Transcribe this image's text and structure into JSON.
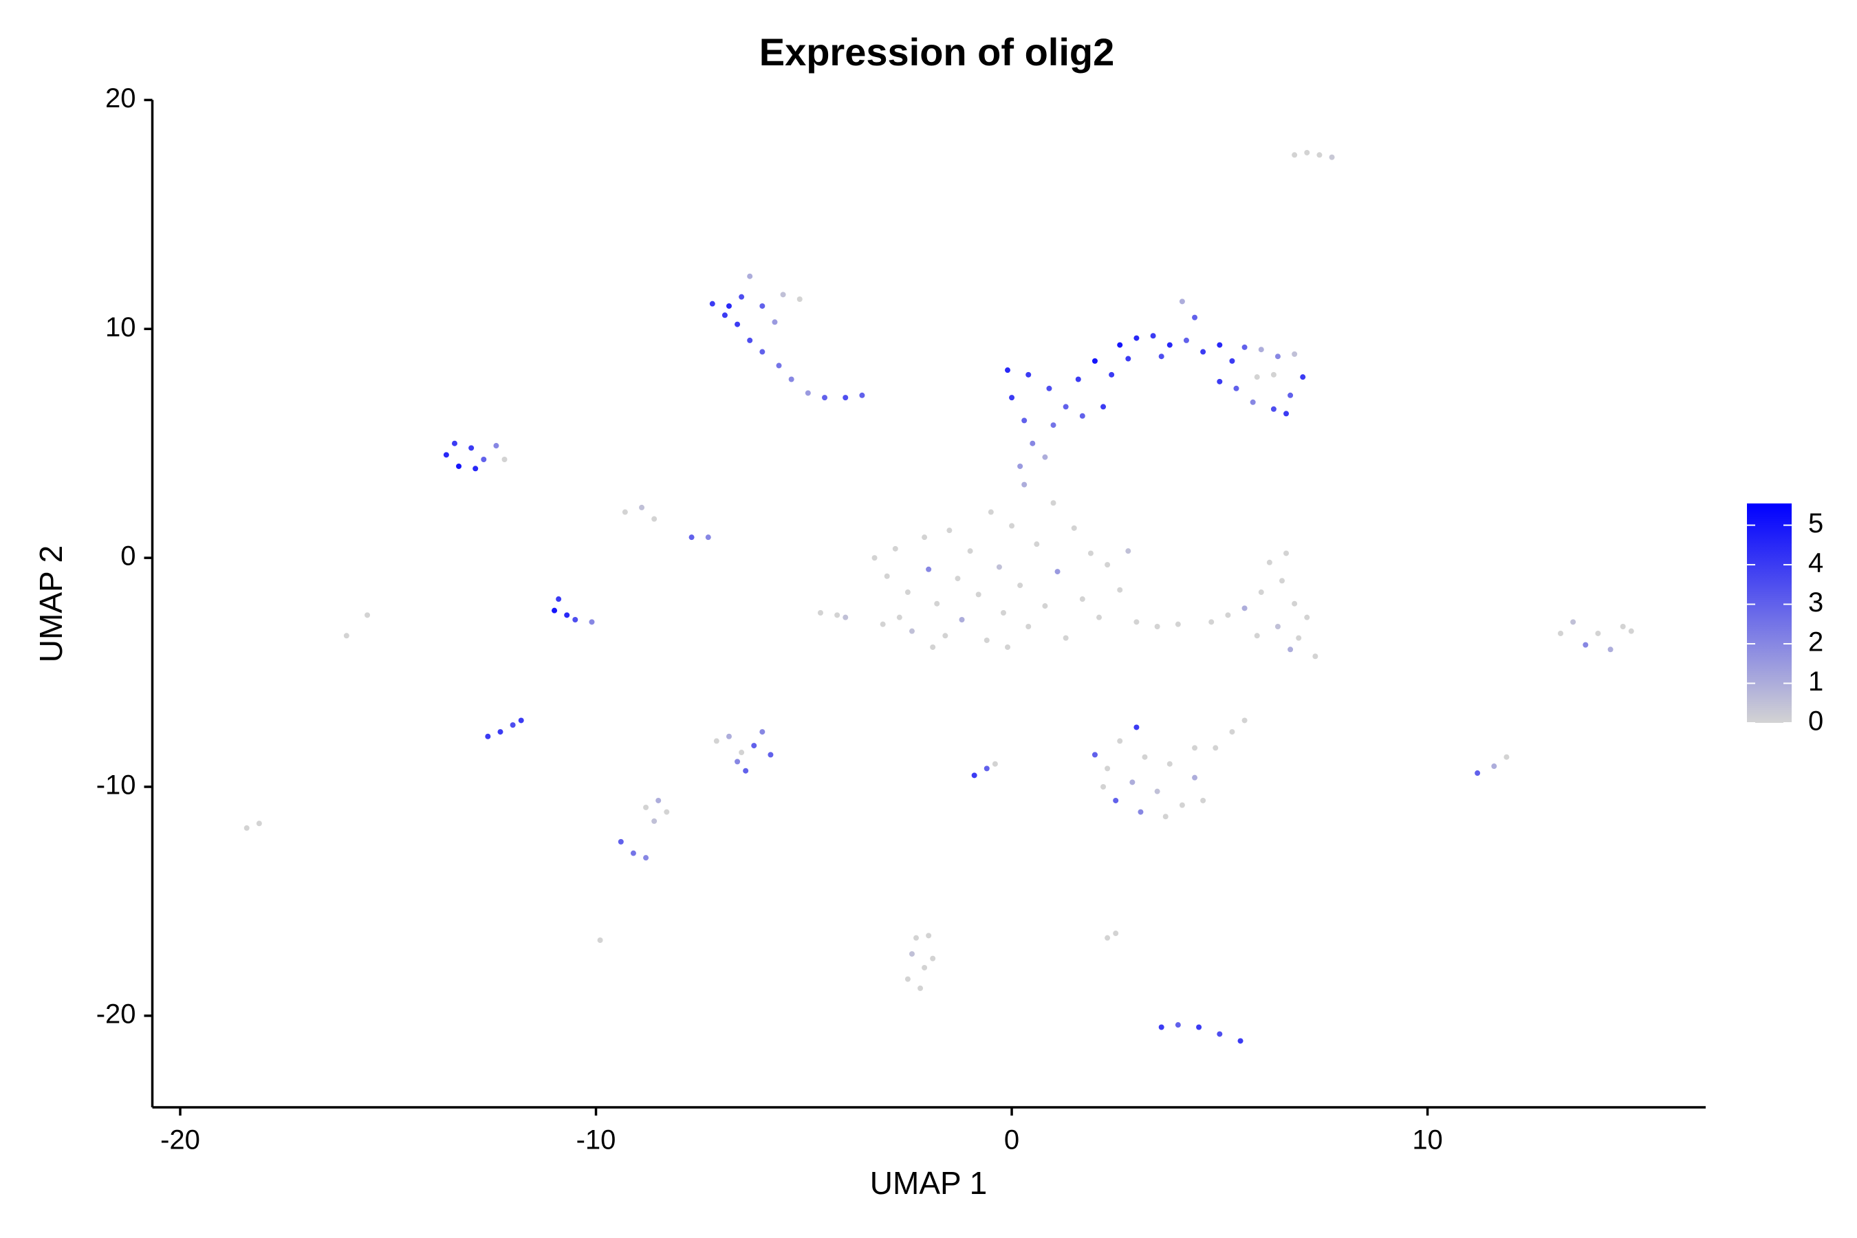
{
  "chart_data": {
    "type": "scatter",
    "title": "Expression of olig2",
    "x_label": "UMAP 1",
    "y_label": "UMAP 2",
    "xlim": [
      -20.67,
      16.69
    ],
    "ylim": [
      -24,
      20
    ],
    "xticks": [
      -20,
      -10,
      0,
      10
    ],
    "yticks": [
      -20,
      -10,
      0,
      10,
      20
    ],
    "colors": [
      "#d3d3d3",
      "#0000ff"
    ],
    "colorlim": [
      0,
      5.55
    ],
    "colorbar_ticks": [
      0,
      1,
      2,
      3,
      4,
      5
    ],
    "points": [
      {
        "x": 6.8,
        "y": 17.6,
        "expression": 0
      },
      {
        "x": 7.1,
        "y": 17.7,
        "expression": 0
      },
      {
        "x": 7.4,
        "y": 17.6,
        "expression": 0
      },
      {
        "x": 7.7,
        "y": 17.5,
        "expression": 0.3
      },
      {
        "x": -7.2,
        "y": 11.1,
        "expression": 4
      },
      {
        "x": -6.8,
        "y": 11.0,
        "expression": 4.5
      },
      {
        "x": -6.5,
        "y": 11.4,
        "expression": 3.5
      },
      {
        "x": -6.3,
        "y": 12.3,
        "expression": 1
      },
      {
        "x": -6.0,
        "y": 11.0,
        "expression": 3
      },
      {
        "x": -5.5,
        "y": 11.5,
        "expression": 0.5
      },
      {
        "x": -5.1,
        "y": 11.3,
        "expression": 0
      },
      {
        "x": -6.6,
        "y": 10.2,
        "expression": 4
      },
      {
        "x": -6.3,
        "y": 9.5,
        "expression": 3.5
      },
      {
        "x": -6.0,
        "y": 9.0,
        "expression": 3
      },
      {
        "x": -5.6,
        "y": 8.4,
        "expression": 2.5
      },
      {
        "x": -5.3,
        "y": 7.8,
        "expression": 2
      },
      {
        "x": -4.9,
        "y": 7.2,
        "expression": 1.5
      },
      {
        "x": -4.5,
        "y": 7.0,
        "expression": 3
      },
      {
        "x": -4.0,
        "y": 7.0,
        "expression": 3.5
      },
      {
        "x": -3.6,
        "y": 7.1,
        "expression": 3
      },
      {
        "x": -5.7,
        "y": 10.3,
        "expression": 1.5
      },
      {
        "x": -6.9,
        "y": 10.6,
        "expression": 4
      },
      {
        "x": -13.6,
        "y": 4.5,
        "expression": 4.5
      },
      {
        "x": -13.3,
        "y": 4.0,
        "expression": 5
      },
      {
        "x": -13.0,
        "y": 4.8,
        "expression": 4
      },
      {
        "x": -12.7,
        "y": 4.3,
        "expression": 3
      },
      {
        "x": -12.4,
        "y": 4.9,
        "expression": 2
      },
      {
        "x": -12.2,
        "y": 4.3,
        "expression": 0
      },
      {
        "x": -13.4,
        "y": 5.0,
        "expression": 4
      },
      {
        "x": -12.9,
        "y": 3.9,
        "expression": 4.5
      },
      {
        "x": -9.3,
        "y": 2.0,
        "expression": 0
      },
      {
        "x": -8.9,
        "y": 2.2,
        "expression": 0.5
      },
      {
        "x": -8.6,
        "y": 1.7,
        "expression": 0
      },
      {
        "x": -7.7,
        "y": 0.9,
        "expression": 3
      },
      {
        "x": -7.3,
        "y": 0.9,
        "expression": 2
      },
      {
        "x": -11.0,
        "y": -2.3,
        "expression": 5
      },
      {
        "x": -10.7,
        "y": -2.5,
        "expression": 4.5
      },
      {
        "x": -10.9,
        "y": -1.8,
        "expression": 4
      },
      {
        "x": -10.5,
        "y": -2.7,
        "expression": 3.5
      },
      {
        "x": -10.1,
        "y": -2.8,
        "expression": 2
      },
      {
        "x": -15.5,
        "y": -2.5,
        "expression": 0
      },
      {
        "x": -16.0,
        "y": -3.4,
        "expression": 0
      },
      {
        "x": -12.6,
        "y": -7.8,
        "expression": 4
      },
      {
        "x": -12.3,
        "y": -7.6,
        "expression": 4
      },
      {
        "x": -12.0,
        "y": -7.3,
        "expression": 3.5
      },
      {
        "x": -11.8,
        "y": -7.1,
        "expression": 4
      },
      {
        "x": -18.4,
        "y": -11.8,
        "expression": 0
      },
      {
        "x": -18.1,
        "y": -11.6,
        "expression": 0
      },
      {
        "x": -4.6,
        "y": -2.4,
        "expression": 0
      },
      {
        "x": -4.2,
        "y": -2.5,
        "expression": 0
      },
      {
        "x": -4.0,
        "y": -2.6,
        "expression": 0.5
      },
      {
        "x": -7.1,
        "y": -8.0,
        "expression": 0
      },
      {
        "x": -6.8,
        "y": -7.8,
        "expression": 1
      },
      {
        "x": -6.5,
        "y": -8.5,
        "expression": 0
      },
      {
        "x": -6.2,
        "y": -8.2,
        "expression": 3
      },
      {
        "x": -6.0,
        "y": -7.6,
        "expression": 2
      },
      {
        "x": -5.8,
        "y": -8.6,
        "expression": 3
      },
      {
        "x": -6.4,
        "y": -9.3,
        "expression": 3
      },
      {
        "x": -6.6,
        "y": -8.9,
        "expression": 2
      },
      {
        "x": -8.8,
        "y": -10.9,
        "expression": 0
      },
      {
        "x": -8.5,
        "y": -10.6,
        "expression": 1
      },
      {
        "x": -8.6,
        "y": -11.5,
        "expression": 0.5
      },
      {
        "x": -8.3,
        "y": -11.1,
        "expression": 0
      },
      {
        "x": -9.4,
        "y": -12.4,
        "expression": 3
      },
      {
        "x": -9.1,
        "y": -12.9,
        "expression": 2.5
      },
      {
        "x": -8.8,
        "y": -13.1,
        "expression": 2
      },
      {
        "x": -9.9,
        "y": -16.7,
        "expression": 0
      },
      {
        "x": -2.3,
        "y": -16.6,
        "expression": 0
      },
      {
        "x": -2.0,
        "y": -16.5,
        "expression": 0
      },
      {
        "x": -2.4,
        "y": -17.3,
        "expression": 0.5
      },
      {
        "x": -2.1,
        "y": -17.9,
        "expression": 0
      },
      {
        "x": -2.5,
        "y": -18.4,
        "expression": 0
      },
      {
        "x": -2.2,
        "y": -18.8,
        "expression": 0
      },
      {
        "x": -1.9,
        "y": -17.5,
        "expression": 0
      },
      {
        "x": -0.9,
        "y": -9.5,
        "expression": 4
      },
      {
        "x": -0.6,
        "y": -9.2,
        "expression": 3
      },
      {
        "x": -0.4,
        "y": -9.0,
        "expression": 0
      },
      {
        "x": 2.3,
        "y": -16.6,
        "expression": 0
      },
      {
        "x": 2.5,
        "y": -16.4,
        "expression": 0
      },
      {
        "x": 3.6,
        "y": -20.5,
        "expression": 4
      },
      {
        "x": 4.0,
        "y": -20.4,
        "expression": 3
      },
      {
        "x": 4.5,
        "y": -20.5,
        "expression": 4
      },
      {
        "x": 5.0,
        "y": -20.8,
        "expression": 3.5
      },
      {
        "x": 5.5,
        "y": -21.1,
        "expression": 4
      },
      {
        "x": 2.0,
        "y": -8.6,
        "expression": 3
      },
      {
        "x": 2.3,
        "y": -9.2,
        "expression": 0
      },
      {
        "x": 2.6,
        "y": -8.0,
        "expression": 0
      },
      {
        "x": 2.9,
        "y": -9.8,
        "expression": 1
      },
      {
        "x": 3.2,
        "y": -8.7,
        "expression": 0
      },
      {
        "x": 3.5,
        "y": -10.2,
        "expression": 0.5
      },
      {
        "x": 3.8,
        "y": -9.0,
        "expression": 0
      },
      {
        "x": 4.1,
        "y": -10.8,
        "expression": 0
      },
      {
        "x": 4.4,
        "y": -9.6,
        "expression": 1
      },
      {
        "x": 4.6,
        "y": -10.6,
        "expression": 0
      },
      {
        "x": 2.5,
        "y": -10.6,
        "expression": 3
      },
      {
        "x": 3.1,
        "y": -11.1,
        "expression": 2
      },
      {
        "x": 3.7,
        "y": -11.3,
        "expression": 0
      },
      {
        "x": 2.2,
        "y": -10.0,
        "expression": 0
      },
      {
        "x": 3.0,
        "y": -7.4,
        "expression": 4
      },
      {
        "x": 4.4,
        "y": -8.3,
        "expression": 0
      },
      {
        "x": 4.9,
        "y": -8.3,
        "expression": 0
      },
      {
        "x": 5.3,
        "y": -7.6,
        "expression": 0
      },
      {
        "x": 5.6,
        "y": -7.1,
        "expression": 0
      },
      {
        "x": 11.2,
        "y": -9.4,
        "expression": 3
      },
      {
        "x": 11.6,
        "y": -9.1,
        "expression": 1
      },
      {
        "x": 11.9,
        "y": -8.7,
        "expression": 0
      },
      {
        "x": 13.2,
        "y": -3.3,
        "expression": 0
      },
      {
        "x": 13.5,
        "y": -2.8,
        "expression": 0.5
      },
      {
        "x": 13.8,
        "y": -3.8,
        "expression": 2
      },
      {
        "x": 14.1,
        "y": -3.3,
        "expression": 0
      },
      {
        "x": 14.4,
        "y": -4.0,
        "expression": 1
      },
      {
        "x": 14.7,
        "y": -3.0,
        "expression": 0
      },
      {
        "x": 14.9,
        "y": -3.2,
        "expression": 0
      },
      {
        "x": -3.3,
        "y": 0,
        "expression": 0
      },
      {
        "x": -3.0,
        "y": -0.8,
        "expression": 0
      },
      {
        "x": -2.8,
        "y": 0.4,
        "expression": 0
      },
      {
        "x": -2.5,
        "y": -1.5,
        "expression": 0
      },
      {
        "x": -2.7,
        "y": -2.6,
        "expression": 0
      },
      {
        "x": -2.4,
        "y": -3.2,
        "expression": 0.5
      },
      {
        "x": -2.1,
        "y": 0.9,
        "expression": 0
      },
      {
        "x": -2.0,
        "y": -0.5,
        "expression": 2
      },
      {
        "x": -1.8,
        "y": -2.0,
        "expression": 0
      },
      {
        "x": -1.6,
        "y": -3.4,
        "expression": 0
      },
      {
        "x": -1.5,
        "y": 1.2,
        "expression": 0
      },
      {
        "x": -1.3,
        "y": -0.9,
        "expression": 0
      },
      {
        "x": -1.2,
        "y": -2.7,
        "expression": 1
      },
      {
        "x": -1.0,
        "y": 0.3,
        "expression": 0
      },
      {
        "x": -0.8,
        "y": -1.6,
        "expression": 0
      },
      {
        "x": -0.6,
        "y": -3.6,
        "expression": 0
      },
      {
        "x": -0.5,
        "y": 2.0,
        "expression": 0
      },
      {
        "x": -0.3,
        "y": -0.4,
        "expression": 0.5
      },
      {
        "x": -0.2,
        "y": -2.4,
        "expression": 0
      },
      {
        "x": 0,
        "y": 1.4,
        "expression": 0
      },
      {
        "x": 0.2,
        "y": -1.2,
        "expression": 0
      },
      {
        "x": 0.3,
        "y": 3.2,
        "expression": 1
      },
      {
        "x": 0.4,
        "y": -3.0,
        "expression": 0
      },
      {
        "x": 0.6,
        "y": 0.6,
        "expression": 0
      },
      {
        "x": 0.8,
        "y": -2.1,
        "expression": 0
      },
      {
        "x": 1.0,
        "y": 2.4,
        "expression": 0
      },
      {
        "x": 1.1,
        "y": -0.6,
        "expression": 1.5
      },
      {
        "x": 1.3,
        "y": -3.5,
        "expression": 0
      },
      {
        "x": 1.5,
        "y": 1.3,
        "expression": 0
      },
      {
        "x": 1.7,
        "y": -1.8,
        "expression": 0
      },
      {
        "x": 1.9,
        "y": 0.2,
        "expression": 0
      },
      {
        "x": 2.1,
        "y": -2.6,
        "expression": 0
      },
      {
        "x": 2.3,
        "y": -0.3,
        "expression": 0
      },
      {
        "x": 2.6,
        "y": -1.4,
        "expression": 0
      },
      {
        "x": 2.8,
        "y": 0.3,
        "expression": 0.5
      },
      {
        "x": 3.0,
        "y": -2.8,
        "expression": 0
      },
      {
        "x": 3.5,
        "y": -3.0,
        "expression": 0
      },
      {
        "x": 4.0,
        "y": -2.9,
        "expression": 0
      },
      {
        "x": -3.1,
        "y": -2.9,
        "expression": 0
      },
      {
        "x": -1.9,
        "y": -3.9,
        "expression": 0
      },
      {
        "x": -0.1,
        "y": -3.9,
        "expression": 0
      },
      {
        "x": 4.8,
        "y": -2.8,
        "expression": 0
      },
      {
        "x": 5.2,
        "y": -2.5,
        "expression": 0
      },
      {
        "x": 5.6,
        "y": -2.2,
        "expression": 1
      },
      {
        "x": 6.0,
        "y": -1.5,
        "expression": 0
      },
      {
        "x": 6.2,
        "y": -0.2,
        "expression": 0
      },
      {
        "x": 6.5,
        "y": -1.0,
        "expression": 0
      },
      {
        "x": 6.8,
        "y": -2.0,
        "expression": 0
      },
      {
        "x": 6.4,
        "y": -3.0,
        "expression": 0.5
      },
      {
        "x": 6.9,
        "y": -3.5,
        "expression": 0
      },
      {
        "x": 7.1,
        "y": -2.6,
        "expression": 0
      },
      {
        "x": 7.3,
        "y": -4.3,
        "expression": 0
      },
      {
        "x": 6.7,
        "y": -4.0,
        "expression": 1
      },
      {
        "x": 5.9,
        "y": -3.4,
        "expression": 0
      },
      {
        "x": 6.6,
        "y": 0.2,
        "expression": 0
      },
      {
        "x": 0.2,
        "y": 4.0,
        "expression": 1.5
      },
      {
        "x": 0.5,
        "y": 5.0,
        "expression": 2
      },
      {
        "x": 0.8,
        "y": 4.4,
        "expression": 1
      },
      {
        "x": 0.3,
        "y": 6.0,
        "expression": 3
      },
      {
        "x": 1.0,
        "y": 5.8,
        "expression": 2.5
      },
      {
        "x": 1.3,
        "y": 6.6,
        "expression": 3
      },
      {
        "x": 0.0,
        "y": 7.0,
        "expression": 4
      },
      {
        "x": -0.1,
        "y": 8.2,
        "expression": 4.5
      },
      {
        "x": 0.4,
        "y": 8.0,
        "expression": 4
      },
      {
        "x": 0.9,
        "y": 7.4,
        "expression": 3.5
      },
      {
        "x": 1.6,
        "y": 7.8,
        "expression": 4
      },
      {
        "x": 2.0,
        "y": 8.6,
        "expression": 5
      },
      {
        "x": 2.4,
        "y": 8.0,
        "expression": 4
      },
      {
        "x": 1.7,
        "y": 6.2,
        "expression": 3
      },
      {
        "x": 2.2,
        "y": 6.6,
        "expression": 4
      },
      {
        "x": 2.6,
        "y": 9.3,
        "expression": 5
      },
      {
        "x": 3.0,
        "y": 9.6,
        "expression": 4.5
      },
      {
        "x": 3.4,
        "y": 9.7,
        "expression": 4
      },
      {
        "x": 3.8,
        "y": 9.3,
        "expression": 4.5
      },
      {
        "x": 2.8,
        "y": 8.7,
        "expression": 4
      },
      {
        "x": 3.6,
        "y": 8.8,
        "expression": 3.5
      },
      {
        "x": 4.2,
        "y": 9.5,
        "expression": 3
      },
      {
        "x": 4.1,
        "y": 11.2,
        "expression": 1
      },
      {
        "x": 4.4,
        "y": 10.5,
        "expression": 3
      },
      {
        "x": 4.6,
        "y": 9.0,
        "expression": 4
      },
      {
        "x": 5.0,
        "y": 9.3,
        "expression": 4.5
      },
      {
        "x": 5.3,
        "y": 8.6,
        "expression": 4
      },
      {
        "x": 5.6,
        "y": 9.2,
        "expression": 3
      },
      {
        "x": 6.0,
        "y": 9.1,
        "expression": 1
      },
      {
        "x": 6.4,
        "y": 8.8,
        "expression": 2
      },
      {
        "x": 6.8,
        "y": 8.9,
        "expression": 0.5
      },
      {
        "x": 7.0,
        "y": 7.9,
        "expression": 4
      },
      {
        "x": 6.7,
        "y": 7.1,
        "expression": 3
      },
      {
        "x": 6.3,
        "y": 6.5,
        "expression": 3.5
      },
      {
        "x": 5.8,
        "y": 6.8,
        "expression": 2
      },
      {
        "x": 5.4,
        "y": 7.4,
        "expression": 3
      },
      {
        "x": 5.0,
        "y": 7.7,
        "expression": 4
      },
      {
        "x": 5.9,
        "y": 7.9,
        "expression": 0
      },
      {
        "x": 6.3,
        "y": 8.0,
        "expression": 0
      },
      {
        "x": 6.6,
        "y": 6.3,
        "expression": 4
      }
    ]
  }
}
